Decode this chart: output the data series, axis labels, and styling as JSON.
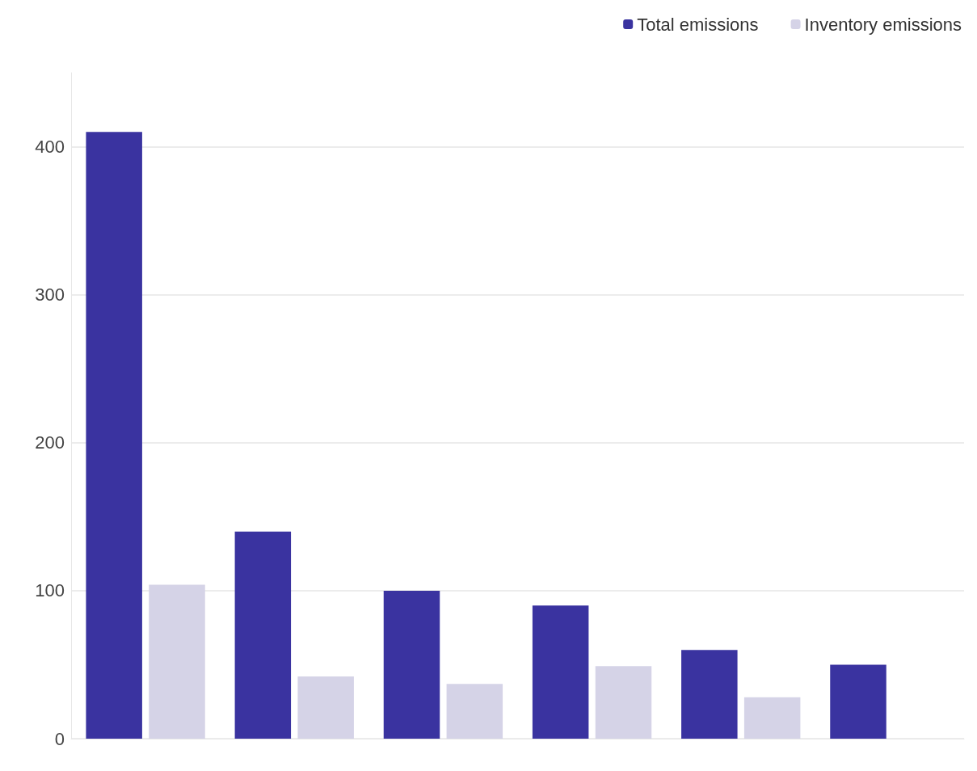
{
  "chart_data": {
    "type": "bar",
    "categories": [
      null,
      null,
      null,
      null,
      null,
      null
    ],
    "series": [
      {
        "name": "Total emissions",
        "color": "#3a33a0",
        "values": [
          410,
          140,
          100,
          90,
          60,
          50
        ]
      },
      {
        "name": "Inventory emissions",
        "color": "#d5d3e7",
        "values": [
          104,
          42,
          37,
          49,
          28,
          null
        ]
      }
    ],
    "ylim": [
      0,
      450
    ],
    "yticks": [
      0,
      100,
      200,
      300,
      400
    ],
    "grid": "y",
    "legend": "top right"
  }
}
